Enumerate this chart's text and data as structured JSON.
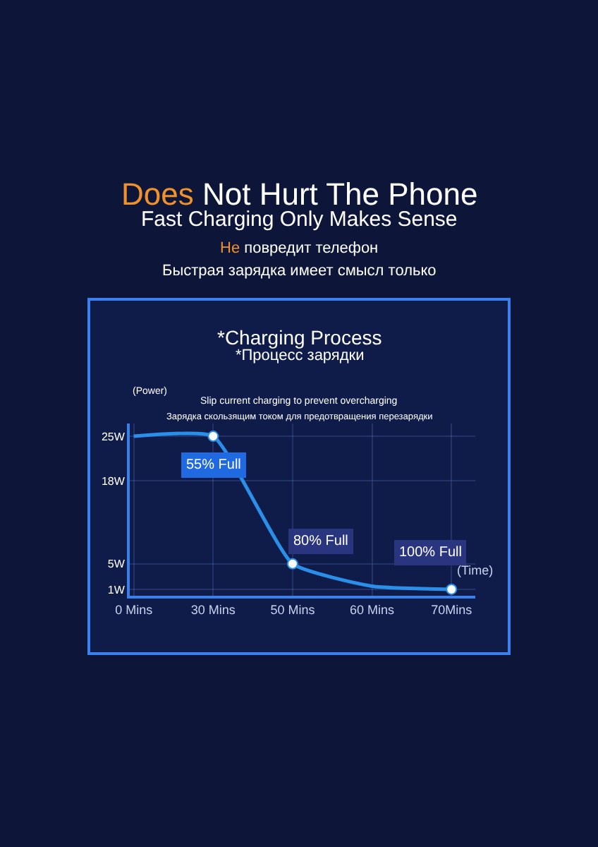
{
  "chart_data": {
    "type": "line",
    "title": "Does Not Hurt The Phone",
    "subtitle": "Fast Charging Only Makes Sense",
    "xlabel": "(Time)",
    "ylabel": "(Power)",
    "categories": [
      "0 Mins",
      "30 Mins",
      "50 Mins",
      "60 Mins",
      "70Mins"
    ],
    "series": [
      {
        "color": "#2a8fe8",
        "values": [
          25,
          25,
          5,
          1.5,
          1
        ]
      },
      {
        "type": "scatter",
        "color": "#ffffff",
        "x": [
          "30 Mins",
          "50 Mins",
          "70Mins"
        ],
        "values": [
          25,
          5,
          1
        ]
      }
    ],
    "ylim": [
      0,
      27
    ],
    "yticks": [
      {
        "value": 1,
        "label": "1W"
      },
      {
        "value": 5,
        "label": "5W"
      },
      {
        "value": 18,
        "label": "18W"
      },
      {
        "value": 25,
        "label": "25W"
      }
    ],
    "annotations": [
      "Не повредит телефон",
      "Быстрая зарядка имеет смысл только",
      "*Charging Process",
      "*Процесс зарядки",
      "Slip current charging to prevent overcharging",
      "Зарядка скользящим током для предотвращения перезарядки",
      {
        "text": "55% Full",
        "x": "30 Mins",
        "y": 25
      },
      {
        "text": "80% Full",
        "x": "50 Mins",
        "y": 5
      },
      {
        "text": "100% Full",
        "x": "70Mins",
        "y": 1
      }
    ],
    "grid": true,
    "line_style": "solid"
  }
}
